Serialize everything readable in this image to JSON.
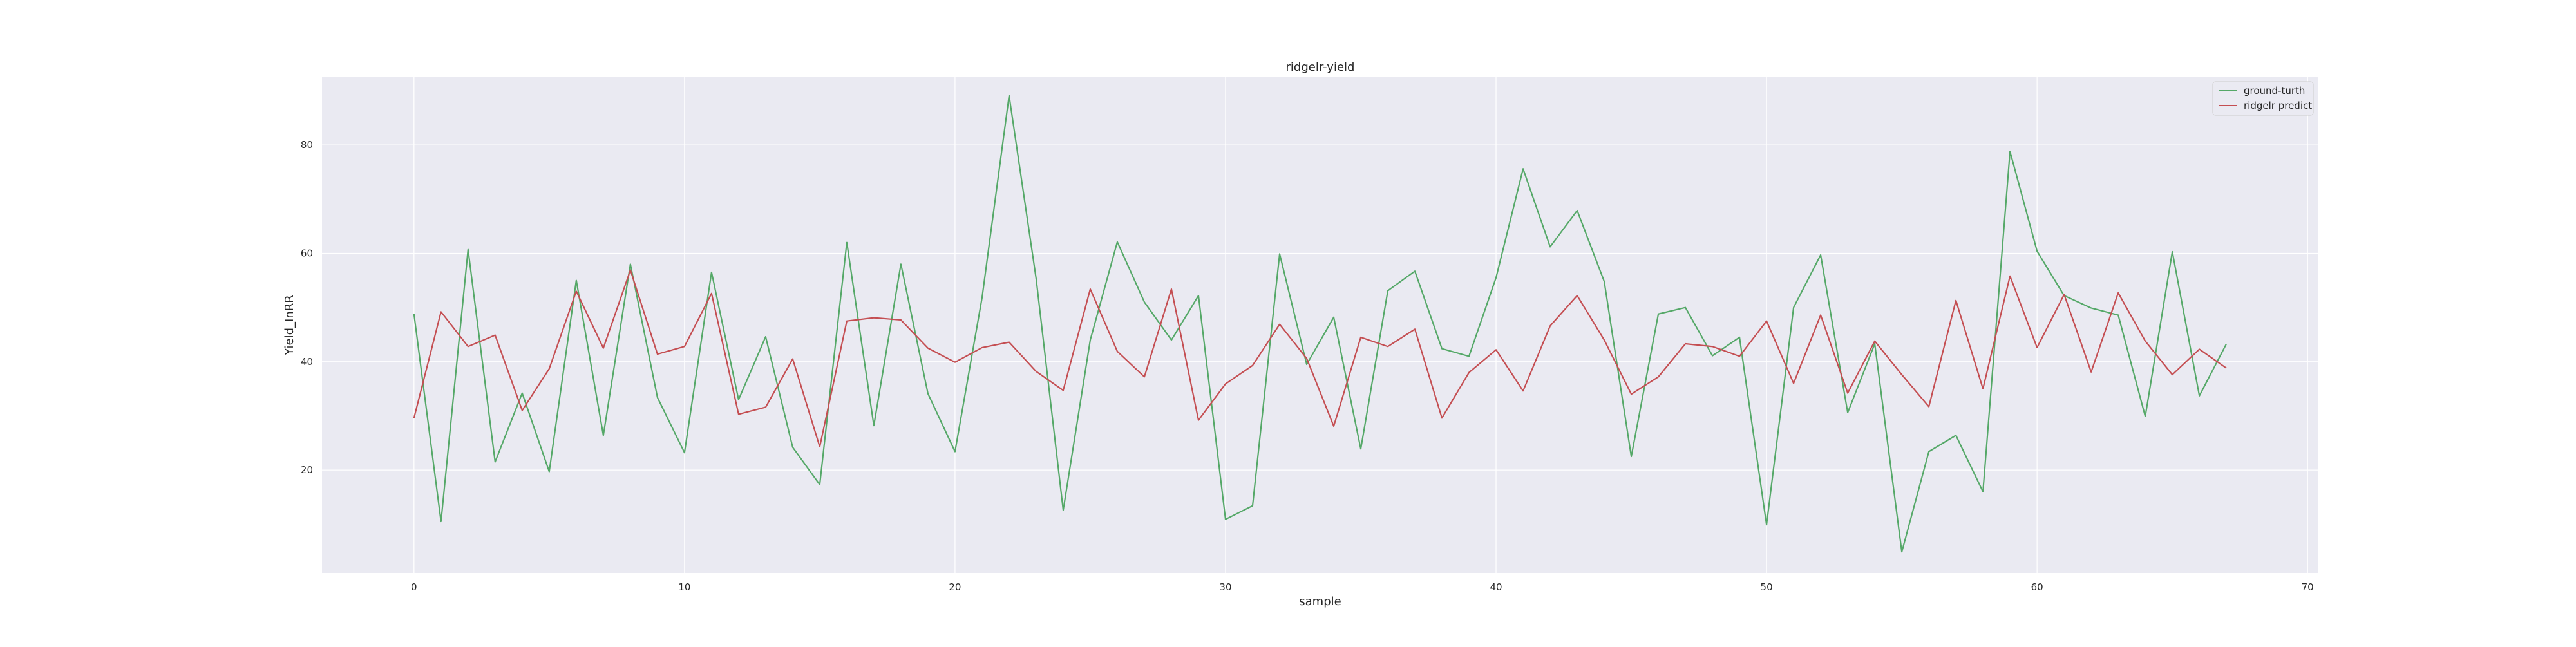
{
  "chart_data": {
    "type": "line",
    "title": "ridgelr-yield",
    "xlabel": "sample",
    "ylabel": "Yield_InRR",
    "xlim": [
      -3.4,
      70.4
    ],
    "ylim": [
      1.0,
      92.5
    ],
    "xticks": [
      0,
      10,
      20,
      30,
      40,
      50,
      60,
      70
    ],
    "yticks": [
      20,
      40,
      60,
      80
    ],
    "grid": true,
    "legend_position": "top-right",
    "x": [
      0,
      1,
      2,
      3,
      4,
      5,
      6,
      7,
      8,
      9,
      10,
      11,
      12,
      13,
      14,
      15,
      16,
      17,
      18,
      19,
      20,
      21,
      22,
      23,
      24,
      25,
      26,
      27,
      28,
      29,
      30,
      31,
      32,
      33,
      34,
      35,
      36,
      37,
      38,
      39,
      40,
      41,
      42,
      43,
      44,
      45,
      46,
      47,
      48,
      49,
      50,
      51,
      52,
      53,
      54,
      55,
      56,
      57,
      58,
      59,
      60,
      61,
      62,
      63,
      64,
      65,
      66,
      67
    ],
    "series": [
      {
        "name": "ground-turth",
        "color": "#55a868",
        "values": [
          48.8,
          10.5,
          60.7,
          21.5,
          34.2,
          19.7,
          55.0,
          26.4,
          58.0,
          33.4,
          23.2,
          56.5,
          33.0,
          44.6,
          24.2,
          17.3,
          62.0,
          28.2,
          58.0,
          34.1,
          23.4,
          51.8,
          89.1,
          55.3,
          12.6,
          44.0,
          62.1,
          51.0,
          44.0,
          52.2,
          10.9,
          13.4,
          59.9,
          39.5,
          48.2,
          23.9,
          53.1,
          56.7,
          42.4,
          41.0,
          55.5,
          75.6,
          61.2,
          67.9,
          54.8,
          22.5,
          48.8,
          50.0,
          41.1,
          44.5,
          9.9,
          50.0,
          59.7,
          30.6,
          43.3,
          4.9,
          23.4,
          26.4,
          16.0,
          78.8,
          60.4,
          52.2,
          49.9,
          48.6,
          29.9,
          60.3,
          33.7,
          43.3
        ]
      },
      {
        "name": "ridgelr predict",
        "color": "#c44e52",
        "values": [
          29.6,
          49.2,
          42.8,
          44.9,
          31.0,
          38.7,
          53.0,
          42.5,
          56.9,
          41.4,
          42.8,
          52.6,
          30.3,
          31.6,
          40.5,
          24.3,
          47.5,
          48.1,
          47.7,
          42.5,
          39.9,
          42.6,
          43.6,
          38.2,
          34.7,
          53.4,
          41.9,
          37.2,
          53.4,
          29.2,
          35.9,
          39.3,
          46.9,
          40.6,
          28.1,
          44.5,
          42.8,
          46.0,
          29.6,
          38.0,
          42.2,
          34.6,
          46.6,
          52.2,
          44.0,
          34.0,
          37.2,
          43.3,
          42.8,
          41.0,
          47.5,
          36.0,
          48.6,
          34.2,
          43.8,
          37.6,
          31.7,
          51.3,
          35.0,
          55.8,
          42.6,
          52.4,
          38.1,
          52.7,
          43.8,
          37.6,
          42.3,
          38.8
        ]
      }
    ]
  }
}
